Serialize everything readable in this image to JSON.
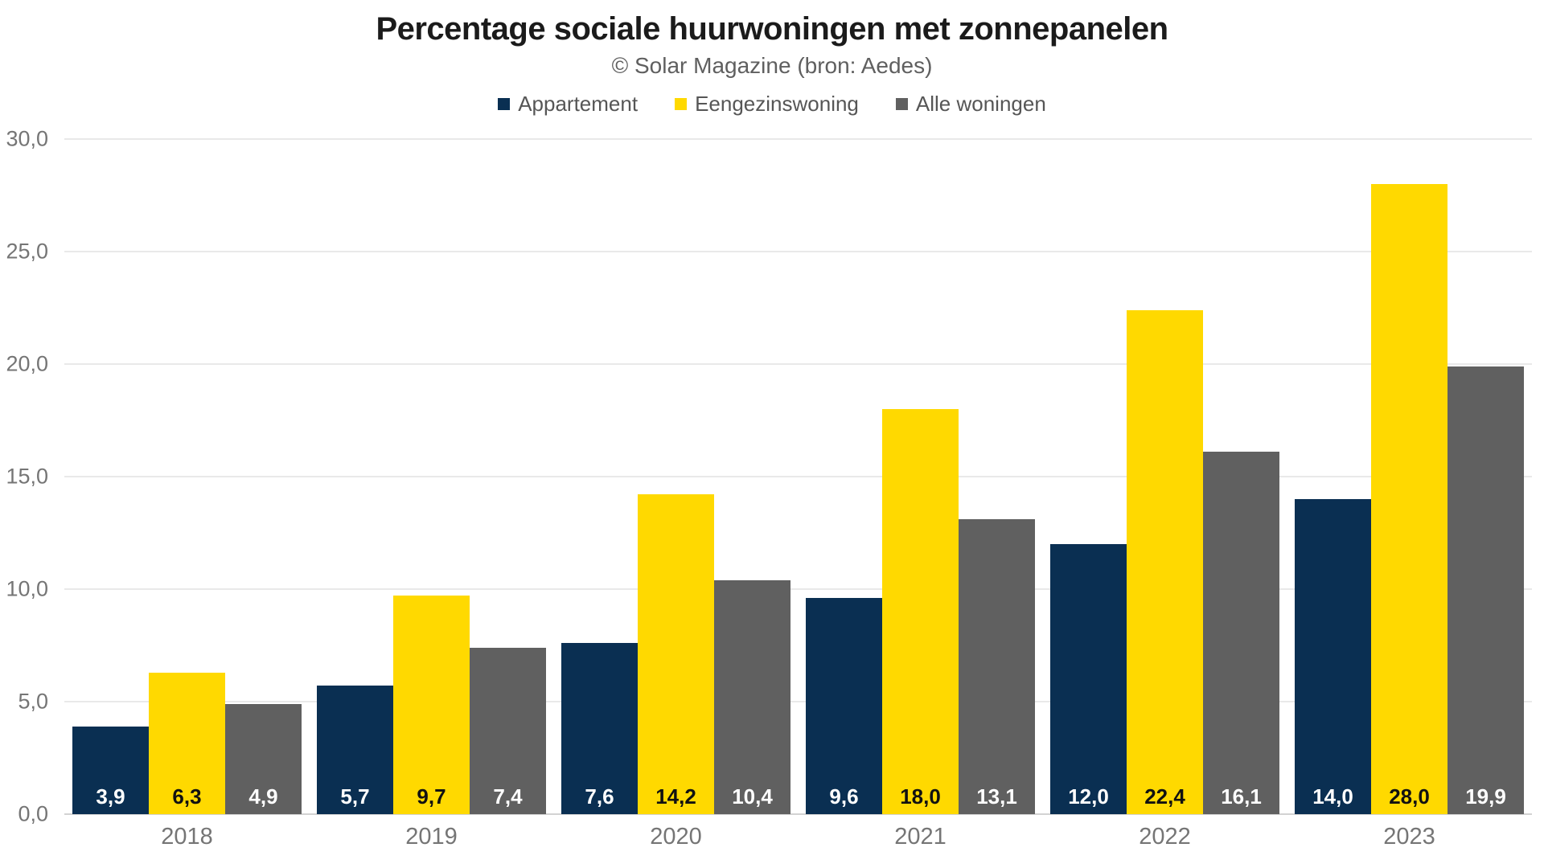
{
  "header": {
    "title": "Percentage sociale huurwoningen met zonnepanelen",
    "subtitle": "© Solar Magazine (bron: Aedes)"
  },
  "chart_data": {
    "type": "bar",
    "title": "Percentage sociale huurwoningen met zonnepanelen",
    "subtitle": "© Solar Magazine (bron: Aedes)",
    "categories": [
      "2018",
      "2019",
      "2020",
      "2021",
      "2022",
      "2023"
    ],
    "series": [
      {
        "name": "Appartement",
        "color": "#0a2f52",
        "label_color": "#ffffff",
        "values": [
          3.9,
          5.7,
          7.6,
          9.6,
          12.0,
          14.0
        ],
        "labels": [
          "3,9",
          "5,7",
          "7,6",
          "9,6",
          "12,0",
          "14,0"
        ]
      },
      {
        "name": "Eengezinswoning",
        "color": "#ffd900",
        "label_color": "#111111",
        "values": [
          6.3,
          9.7,
          14.2,
          18.0,
          22.4,
          28.0
        ],
        "labels": [
          "6,3",
          "9,7",
          "14,2",
          "18,0",
          "22,4",
          "28,0"
        ]
      },
      {
        "name": "Alle woningen",
        "color": "#606060",
        "label_color": "#ffffff",
        "values": [
          4.9,
          7.4,
          10.4,
          13.1,
          16.1,
          19.9
        ],
        "labels": [
          "4,9",
          "7,4",
          "10,4",
          "13,1",
          "16,1",
          "19,9"
        ]
      }
    ],
    "xlabel": "",
    "ylabel": "",
    "ylim": [
      0,
      30
    ],
    "yticks": [
      {
        "value": 30,
        "label": "30,0"
      },
      {
        "value": 25,
        "label": "25,0"
      },
      {
        "value": 20,
        "label": "20,0"
      },
      {
        "value": 15,
        "label": "15,0"
      },
      {
        "value": 10,
        "label": "10,0"
      },
      {
        "value": 5,
        "label": "5,0"
      },
      {
        "value": 0,
        "label": "0,0"
      }
    ],
    "grid": true,
    "legend_position": "top"
  },
  "colors": {
    "background": "#ffffff",
    "title_text": "#1b1b1b",
    "subtitle_text": "#5f5f5f",
    "legend_text": "#565656",
    "tick_text": "#757575",
    "gridline": "#e9e9e9",
    "axis_line": "#d2d2d2"
  }
}
